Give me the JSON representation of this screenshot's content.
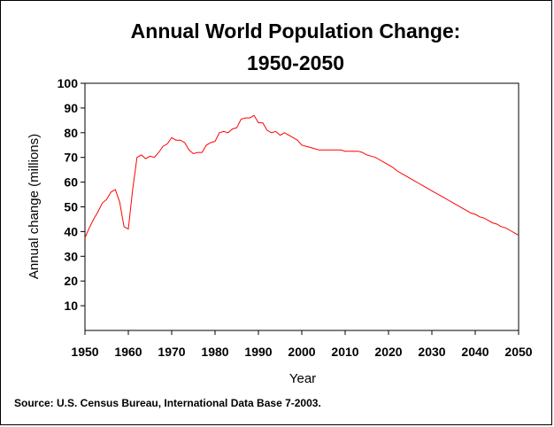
{
  "chart_data": {
    "type": "line",
    "title": "Annual World Population Change:",
    "subtitle": "1950-2050",
    "xlabel": "Year",
    "ylabel": "Annual change (millions)",
    "source": "Source: U.S. Census Bureau, International Data Base 7-2003.",
    "xlim": [
      1950,
      2050
    ],
    "ylim": [
      0,
      100
    ],
    "x_ticks": [
      1950,
      1960,
      1970,
      1980,
      1990,
      2000,
      2010,
      2020,
      2030,
      2040,
      2050
    ],
    "y_ticks": [
      10,
      20,
      30,
      40,
      50,
      60,
      70,
      80,
      90,
      100
    ],
    "grid": false,
    "line_color": "#ff0000",
    "series": [
      {
        "x": [
          1950,
          1951,
          1952,
          1953,
          1954,
          1955,
          1956,
          1957,
          1958,
          1959,
          1960,
          1961,
          1962,
          1963,
          1964,
          1965,
          1966,
          1967,
          1968,
          1969,
          1970,
          1971,
          1972,
          1973,
          1974,
          1975,
          1976,
          1977,
          1978,
          1979,
          1980,
          1981,
          1982,
          1983,
          1984,
          1985,
          1986,
          1987,
          1988,
          1989,
          1990,
          1991,
          1992,
          1993,
          1994,
          1995,
          1996,
          1997,
          1998,
          1999,
          2000,
          2001,
          2002,
          2003,
          2004,
          2005,
          2006,
          2007,
          2008,
          2009,
          2010,
          2011,
          2012,
          2013,
          2014,
          2015,
          2016,
          2017,
          2018,
          2019,
          2020,
          2021,
          2022,
          2023,
          2024,
          2025,
          2026,
          2027,
          2028,
          2029,
          2030,
          2031,
          2032,
          2033,
          2034,
          2035,
          2036,
          2037,
          2038,
          2039,
          2040,
          2041,
          2042,
          2043,
          2044,
          2045,
          2046,
          2047,
          2048,
          2049,
          2050
        ],
        "values": [
          37.5,
          41.5,
          45,
          48,
          51.5,
          53,
          56,
          57,
          52,
          42,
          41,
          57,
          70,
          71,
          69.5,
          70.5,
          70,
          72,
          74.5,
          75.5,
          78,
          77,
          77,
          76,
          73,
          71.5,
          72,
          72,
          75,
          76,
          76.5,
          80,
          80.5,
          80,
          81.5,
          82,
          85.5,
          86,
          86,
          87,
          84,
          84,
          81,
          80,
          80.5,
          79,
          80,
          79,
          78,
          77,
          75,
          74.5,
          74,
          73.5,
          73,
          73,
          73,
          73,
          73,
          73,
          72.5,
          72.5,
          72.5,
          72.5,
          72,
          71,
          70.5,
          70,
          69,
          68,
          67,
          66,
          64.5,
          63.5,
          62.5,
          61.5,
          60.5,
          59.5,
          58.5,
          57.5,
          56.5,
          55.5,
          54.5,
          53.5,
          52.5,
          51.5,
          50.5,
          49.5,
          48.5,
          47.5,
          47,
          46,
          45.5,
          44.5,
          43.5,
          43,
          42,
          41.5,
          40.5,
          39.5,
          38.5
        ]
      }
    ]
  }
}
